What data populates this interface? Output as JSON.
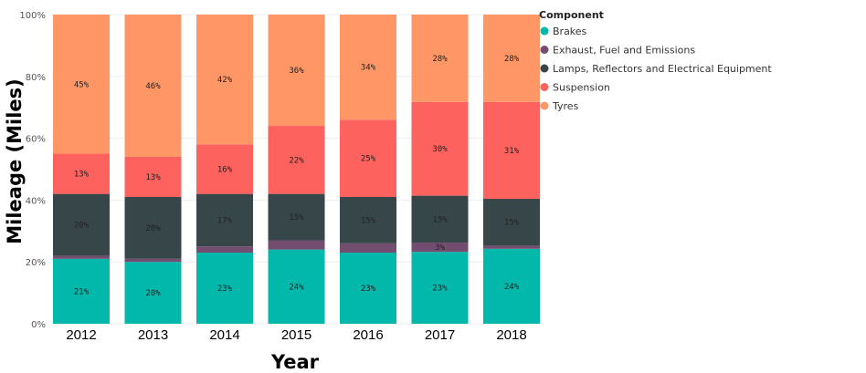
{
  "chart_data": {
    "type": "bar",
    "stacked": true,
    "percent_stacked": true,
    "title": "",
    "xlabel": "Year",
    "ylabel": "Mileage (Miles)",
    "ylim": [
      0,
      100
    ],
    "yticks": [
      "0%",
      "20%",
      "40%",
      "60%",
      "80%",
      "100%"
    ],
    "categories": [
      "2012",
      "2013",
      "2014",
      "2015",
      "2016",
      "2017",
      "2018"
    ],
    "legend": {
      "title": "Component",
      "placement": "top-right"
    },
    "grid": true,
    "series": [
      {
        "name": "Brakes",
        "color": "#01b8aa",
        "values": [
          21,
          20,
          23,
          24,
          23,
          23,
          24
        ],
        "labels": [
          "21%",
          "20%",
          "23%",
          "24%",
          "23%",
          "23%",
          "24%"
        ]
      },
      {
        "name": "Exhaust, Fuel and Emissions",
        "color": "#734d70",
        "values": [
          1,
          1,
          2,
          3,
          3,
          3,
          1
        ],
        "labels": [
          "",
          "",
          "",
          "",
          "",
          "3%",
          ""
        ]
      },
      {
        "name": "Lamps, Reflectors and Electrical Equipment",
        "color": "#374649",
        "values": [
          20,
          20,
          17,
          15,
          15,
          15,
          15
        ],
        "labels": [
          "20%",
          "20%",
          "17%",
          "15%",
          "15%",
          "15%",
          "15%"
        ]
      },
      {
        "name": "Suspension",
        "color": "#fd625e",
        "values": [
          13,
          13,
          16,
          22,
          25,
          30,
          31
        ],
        "labels": [
          "13%",
          "13%",
          "16%",
          "22%",
          "25%",
          "30%",
          "31%"
        ]
      },
      {
        "name": "Tyres",
        "color": "#fe9666",
        "values": [
          45,
          46,
          42,
          36,
          34,
          28,
          28
        ],
        "labels": [
          "45%",
          "46%",
          "42%",
          "36%",
          "34%",
          "28%",
          "28%"
        ]
      }
    ]
  }
}
